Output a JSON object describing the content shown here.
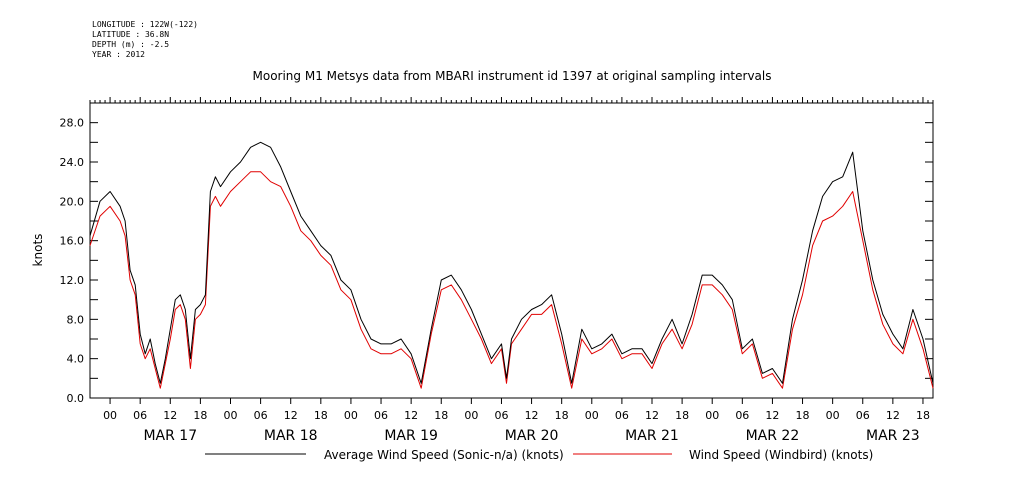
{
  "meta": {
    "longitude": "LONGITUDE : 122W(-122)",
    "latitude": "LATITUDE : 36.8N",
    "depth": "DEPTH (m) : -2.5",
    "year": "YEAR : 2012"
  },
  "colors": {
    "sonic": "#000000",
    "windbird": "#e00000"
  },
  "chart_data": {
    "type": "line",
    "title": "Mooring M1 Metsys data from MBARI instrument id 1397 at original sampling intervals",
    "xlabel": "",
    "ylabel": "knots",
    "ylim": [
      0,
      30
    ],
    "xlim_hours": [
      -4,
      164
    ],
    "yticks": [
      "0.0",
      "4.0",
      "8.0",
      "12.0",
      "16.0",
      "20.0",
      "24.0",
      "28.0"
    ],
    "hour_tick_labels": [
      "00",
      "06",
      "12",
      "18"
    ],
    "day_labels": [
      "MAR 17",
      "MAR 18",
      "MAR 19",
      "MAR 20",
      "MAR 21",
      "MAR 22",
      "MAR 23"
    ],
    "grid": false,
    "legend": "bottom",
    "x_unit": "hours since 2012-03-17 00:00",
    "series": [
      {
        "name": "Average Wind Speed (Sonic-n/a) (knots)",
        "x": [
          -4,
          -2,
          0,
          2,
          3,
          4,
          5,
          6,
          7,
          8,
          9,
          10,
          11,
          12,
          13,
          14,
          15,
          16,
          17,
          18,
          19,
          20,
          21,
          22,
          24,
          26,
          28,
          30,
          32,
          34,
          36,
          38,
          40,
          42,
          44,
          46,
          48,
          50,
          52,
          54,
          56,
          58,
          60,
          62,
          64,
          66,
          68,
          70,
          72,
          74,
          76,
          78,
          79,
          80,
          82,
          84,
          86,
          88,
          90,
          92,
          94,
          96,
          98,
          100,
          102,
          104,
          106,
          108,
          110,
          112,
          114,
          116,
          118,
          120,
          122,
          124,
          126,
          128,
          130,
          132,
          134,
          136,
          138,
          140,
          142,
          144,
          146,
          148,
          150,
          152,
          154,
          156,
          158,
          160,
          162,
          164
        ],
        "values": [
          16.5,
          20,
          21,
          19.5,
          18,
          13,
          11.5,
          6.5,
          4.5,
          6,
          3.5,
          1.5,
          4,
          7,
          10,
          10.5,
          9,
          4,
          9,
          9.5,
          10.5,
          21,
          22.5,
          21.5,
          23,
          24,
          25.5,
          26,
          25.5,
          23.5,
          21,
          18.5,
          17,
          15.5,
          14.5,
          12,
          11,
          8,
          6,
          5.5,
          5.5,
          6,
          4.5,
          1.5,
          7,
          12,
          12.5,
          11,
          9,
          6.5,
          4,
          5.5,
          2,
          6,
          8,
          9,
          9.5,
          10.5,
          6.5,
          1.5,
          7,
          5,
          5.5,
          6.5,
          4.5,
          5,
          5,
          3.5,
          6,
          8,
          5.5,
          8.5,
          12.5,
          12.5,
          11.5,
          10,
          5,
          6,
          2.5,
          3,
          1.5,
          8,
          12,
          17,
          20.5,
          22,
          22.5,
          25,
          17,
          12,
          8.5,
          6.5,
          5,
          9,
          6,
          1.5
        ]
      },
      {
        "name": "Wind Speed (Windbird) (knots)",
        "x": [
          -4,
          -2,
          0,
          2,
          3,
          4,
          5,
          6,
          7,
          8,
          9,
          10,
          11,
          12,
          13,
          14,
          15,
          16,
          17,
          18,
          19,
          20,
          21,
          22,
          24,
          26,
          28,
          30,
          32,
          34,
          36,
          38,
          40,
          42,
          44,
          46,
          48,
          50,
          52,
          54,
          56,
          58,
          60,
          62,
          64,
          66,
          68,
          70,
          72,
          74,
          76,
          78,
          79,
          80,
          82,
          84,
          86,
          88,
          90,
          92,
          94,
          96,
          98,
          100,
          102,
          104,
          106,
          108,
          110,
          112,
          114,
          116,
          118,
          120,
          122,
          124,
          126,
          128,
          130,
          132,
          134,
          136,
          138,
          140,
          142,
          144,
          146,
          148,
          150,
          152,
          154,
          156,
          158,
          160,
          162,
          164
        ],
        "values": [
          15.5,
          18.5,
          19.5,
          18,
          16.5,
          12,
          10.5,
          5.5,
          4,
          5,
          3,
          1,
          3.5,
          6,
          9,
          9.5,
          8,
          3,
          8,
          8.5,
          9.5,
          19.5,
          20.5,
          19.5,
          21,
          22,
          23,
          23,
          22,
          21.5,
          19.5,
          17,
          16,
          14.5,
          13.5,
          11,
          10,
          7,
          5,
          4.5,
          4.5,
          5,
          4,
          1,
          6.5,
          11,
          11.5,
          10,
          8,
          6,
          3.5,
          5,
          1.5,
          5.5,
          7,
          8.5,
          8.5,
          9.5,
          5.5,
          1,
          6,
          4.5,
          5,
          6,
          4,
          4.5,
          4.5,
          3,
          5.5,
          7,
          5,
          7.5,
          11.5,
          11.5,
          10.5,
          9,
          4.5,
          5.5,
          2,
          2.5,
          1,
          7,
          10.5,
          15.5,
          18,
          18.5,
          19.5,
          21,
          16,
          11,
          7.5,
          5.5,
          4.5,
          8,
          5,
          1
        ]
      }
    ]
  }
}
